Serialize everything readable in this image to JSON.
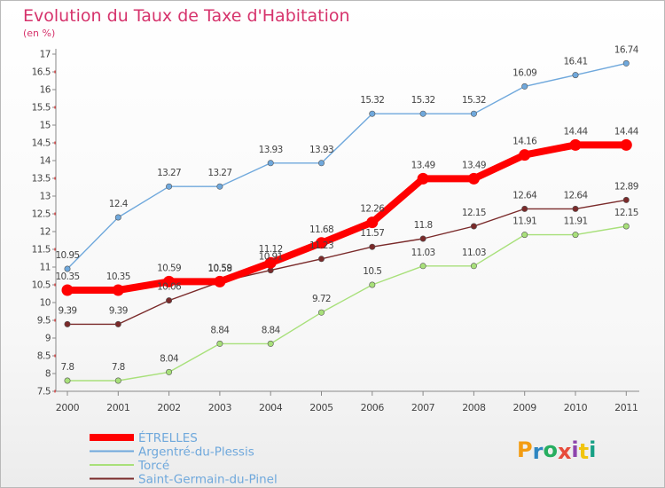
{
  "title": "Evolution du Taux de Taxe d'Habitation",
  "subtitle": "(en %)",
  "logo": {
    "text": "Proxiti",
    "letters": [
      {
        "ch": "P",
        "color": "#f39c12"
      },
      {
        "ch": "r",
        "color": "#2e86c1"
      },
      {
        "ch": "o",
        "color": "#27ae60"
      },
      {
        "ch": "x",
        "color": "#e74c3c"
      },
      {
        "ch": "i",
        "color": "#8e44ad"
      },
      {
        "ch": "t",
        "color": "#f1c40f"
      },
      {
        "ch": "i",
        "color": "#16a085"
      }
    ]
  },
  "chart_data": {
    "type": "line",
    "x": [
      "2000",
      "2001",
      "2002",
      "2003",
      "2004",
      "2005",
      "2006",
      "2007",
      "2008",
      "2009",
      "2010",
      "2011"
    ],
    "ylim": [
      7.5,
      17
    ],
    "yticks": [
      "7.5",
      "8",
      "8.5",
      "9",
      "9.5",
      "10",
      "10.5",
      "11",
      "11.5",
      "12",
      "12.5",
      "13",
      "13.5",
      "14",
      "14.5",
      "15",
      "15.5",
      "16",
      "16.5",
      "17"
    ],
    "grid": false,
    "legend_position": "bottom-left",
    "series": [
      {
        "name": "ÉTRELLES",
        "color": "#ff0000",
        "values": [
          10.35,
          10.35,
          10.59,
          10.59,
          11.12,
          11.68,
          12.26,
          13.49,
          13.49,
          14.16,
          14.44,
          14.44
        ],
        "labels": [
          "10.35",
          "10.35",
          "10.59",
          "10.59",
          "11.12",
          "11.68",
          "12.26",
          "13.49",
          "13.49",
          "14.16",
          "14.44",
          "14.44"
        ]
      },
      {
        "name": "Argentré-du-Plessis",
        "color": "#6fa8dc",
        "values": [
          10.95,
          12.4,
          13.27,
          13.27,
          13.93,
          13.93,
          15.32,
          15.32,
          15.32,
          16.09,
          16.41,
          16.74
        ],
        "labels": [
          "10.95",
          "12.4",
          "13.27",
          "13.27",
          "13.93",
          "13.93",
          "15.32",
          "15.32",
          "15.32",
          "16.09",
          "16.41",
          "16.74"
        ]
      },
      {
        "name": "Torcé",
        "color": "#a8e07a",
        "values": [
          7.8,
          7.8,
          8.04,
          8.84,
          8.84,
          9.72,
          10.5,
          11.03,
          11.03,
          11.91,
          11.91,
          12.15
        ],
        "labels": [
          "7.8",
          "7.8",
          "8.04",
          "8.84",
          "8.84",
          "9.72",
          "10.5",
          "11.03",
          "11.03",
          "11.91",
          "11.91",
          "12.15"
        ]
      },
      {
        "name": "Saint-Germain-du-Pinel",
        "color": "#7a2a2a",
        "values": [
          9.39,
          9.39,
          10.06,
          10.58,
          10.91,
          11.23,
          11.57,
          11.8,
          12.15,
          12.64,
          12.64,
          12.89
        ],
        "labels": [
          "9.39",
          "9.39",
          "10.06",
          "10.58",
          "10.91",
          "11.23",
          "11.57",
          "11.8",
          "12.15",
          "12.64",
          "12.64",
          "12.89"
        ]
      }
    ]
  }
}
